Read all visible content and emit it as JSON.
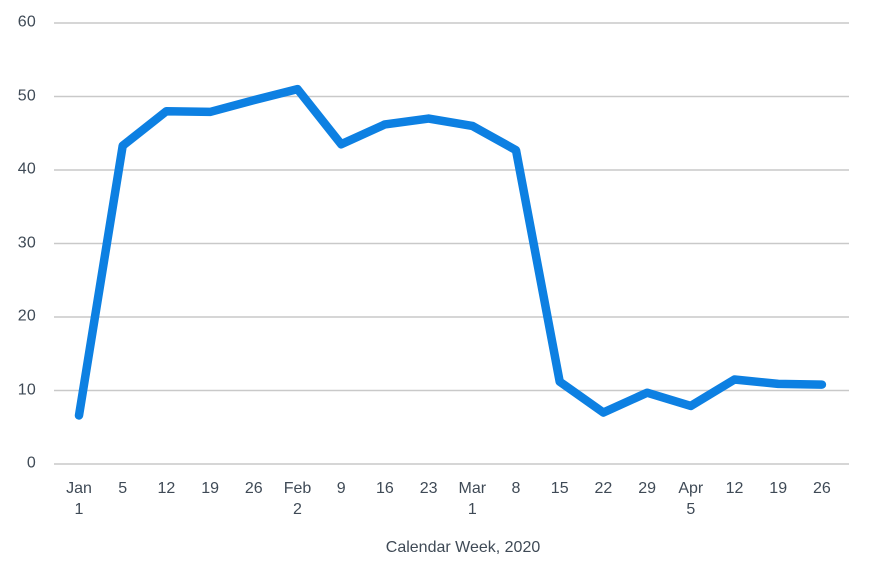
{
  "chart_data": {
    "type": "line",
    "title": "",
    "xlabel": "Calendar Week, 2020",
    "ylabel": "",
    "ylim": [
      0,
      60
    ],
    "yticks": [
      0,
      10,
      20,
      30,
      40,
      50,
      60
    ],
    "categories": [
      "Jan 1",
      "Jan 5",
      "Jan 12",
      "Jan 19",
      "Jan 26",
      "Feb 2",
      "Feb 9",
      "Feb 16",
      "Feb 23",
      "Mar 1",
      "Mar 8",
      "Mar 15",
      "Mar 22",
      "Mar 29",
      "Apr 5",
      "Apr 12",
      "Apr 19",
      "Apr 26"
    ],
    "x_tick_labels": [
      [
        "Jan",
        "1"
      ],
      [
        "5"
      ],
      [
        "12"
      ],
      [
        "19"
      ],
      [
        "26"
      ],
      [
        "Feb",
        "2"
      ],
      [
        "9"
      ],
      [
        "16"
      ],
      [
        "23"
      ],
      [
        "Mar",
        "1"
      ],
      [
        "8"
      ],
      [
        "15"
      ],
      [
        "22"
      ],
      [
        "29"
      ],
      [
        "Apr",
        "5"
      ],
      [
        "12"
      ],
      [
        "19"
      ],
      [
        "26"
      ]
    ],
    "series": [
      {
        "name": "",
        "values": [
          6.6,
          43.3,
          48,
          47.9,
          49.5,
          51,
          43.5,
          46.2,
          47,
          46,
          42.7,
          11.2,
          7,
          9.7,
          7.9,
          11.5,
          10.9,
          10.8
        ]
      }
    ],
    "grid": true,
    "legend": "none",
    "colors": {
      "line": "#0d80e2",
      "gridline": "#c9c9c9",
      "tick_text": "#3f4a56",
      "background": "#ffffff"
    }
  }
}
